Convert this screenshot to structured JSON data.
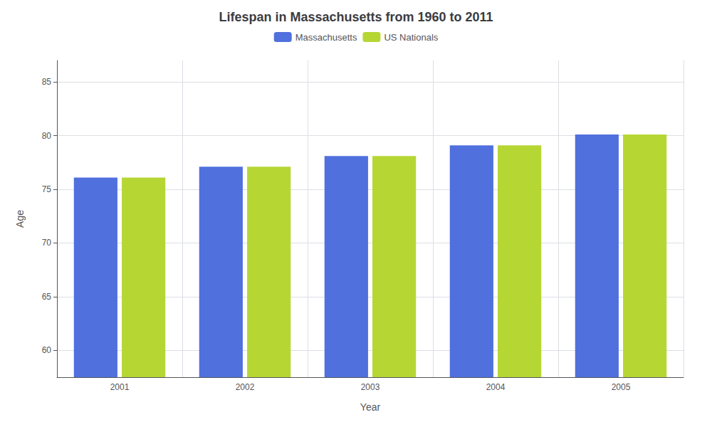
{
  "chart_data": {
    "type": "bar",
    "title": "Lifespan in Massachusetts from 1960 to 2011",
    "xlabel": "Year",
    "ylabel": "Age",
    "categories": [
      "2001",
      "2002",
      "2003",
      "2004",
      "2005"
    ],
    "series": [
      {
        "name": "Massachusetts",
        "values": [
          76.1,
          77.1,
          78.1,
          79.1,
          80.1
        ]
      },
      {
        "name": "US Nationals",
        "values": [
          76.1,
          77.1,
          78.1,
          79.1,
          80.1
        ]
      }
    ],
    "ylim": [
      57.5,
      87
    ],
    "yticks": [
      60,
      65,
      70,
      75,
      80,
      85
    ],
    "grid": true,
    "legend": "top"
  }
}
